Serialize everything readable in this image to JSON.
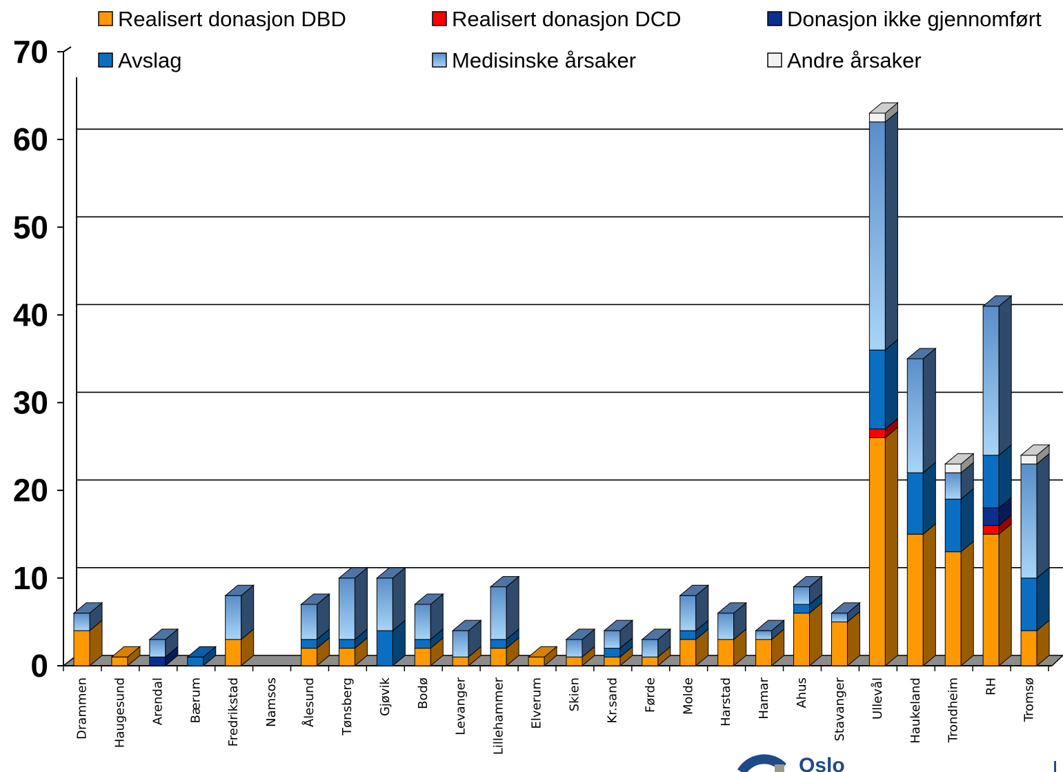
{
  "chart_data": {
    "type": "bar",
    "stacked": true,
    "three_d": true,
    "categories": [
      "Drammen",
      "Haugesund",
      "Arendal",
      "Bærum",
      "Fredrikstad",
      "Namsos",
      "Ålesund",
      "Tønsberg",
      "Gjøvik",
      "Bodø",
      "Levanger",
      "Lillehammer",
      "Elverum",
      "Skien",
      "Kr.sand",
      "Førde",
      "Molde",
      "Harstad",
      "Hamar",
      "Ahus",
      "Stavanger",
      "Ullevål",
      "Haukeland",
      "Trondheim",
      "RH",
      "Tromsø"
    ],
    "series": [
      {
        "name": "Realisert donasjon DBD",
        "color": "#ff9900",
        "values": [
          4,
          1,
          0,
          0,
          3,
          0,
          2,
          2,
          0,
          2,
          1,
          2,
          1,
          1,
          1,
          1,
          3,
          3,
          3,
          6,
          5,
          26,
          15,
          13,
          15,
          4
        ]
      },
      {
        "name": "Realisert donasjon DCD",
        "color": "#ff0000",
        "values": [
          0,
          0,
          0,
          0,
          0,
          0,
          0,
          0,
          0,
          0,
          0,
          0,
          0,
          0,
          0,
          0,
          0,
          0,
          0,
          0,
          0,
          1,
          0,
          0,
          1,
          0
        ]
      },
      {
        "name": "Donasjon ikke gjennomført",
        "color": "#0a2f8f",
        "values": [
          0,
          0,
          1,
          0,
          0,
          0,
          0,
          0,
          0,
          0,
          0,
          0,
          0,
          0,
          0,
          0,
          0,
          0,
          0,
          0,
          0,
          0,
          0,
          0,
          2,
          0
        ]
      },
      {
        "name": "Avslag",
        "color": "#0a6fc2",
        "values": [
          0,
          0,
          0,
          1,
          0,
          0,
          1,
          1,
          4,
          1,
          0,
          1,
          0,
          0,
          1,
          0,
          1,
          0,
          0,
          1,
          0,
          9,
          7,
          6,
          6,
          6
        ]
      },
      {
        "name": "Medisinske årsaker",
        "color": "#8ec3ef",
        "values": [
          2,
          0,
          2,
          0,
          5,
          0,
          4,
          7,
          6,
          4,
          3,
          6,
          0,
          2,
          2,
          2,
          4,
          3,
          1,
          2,
          1,
          26,
          13,
          3,
          17,
          13
        ]
      },
      {
        "name": "Andre årsaker",
        "color": "#f2f2f2",
        "values": [
          0,
          0,
          0,
          0,
          0,
          0,
          0,
          0,
          0,
          0,
          0,
          0,
          0,
          0,
          0,
          0,
          0,
          0,
          0,
          0,
          0,
          1,
          0,
          1,
          0,
          1
        ]
      }
    ],
    "ylim": [
      0,
      70
    ],
    "yticks": [
      0,
      10,
      20,
      30,
      40,
      50,
      60,
      70
    ],
    "grid": true,
    "legend_position": "top",
    "title": "",
    "xlabel": "",
    "ylabel": ""
  },
  "logo": {
    "text": "Oslo"
  }
}
